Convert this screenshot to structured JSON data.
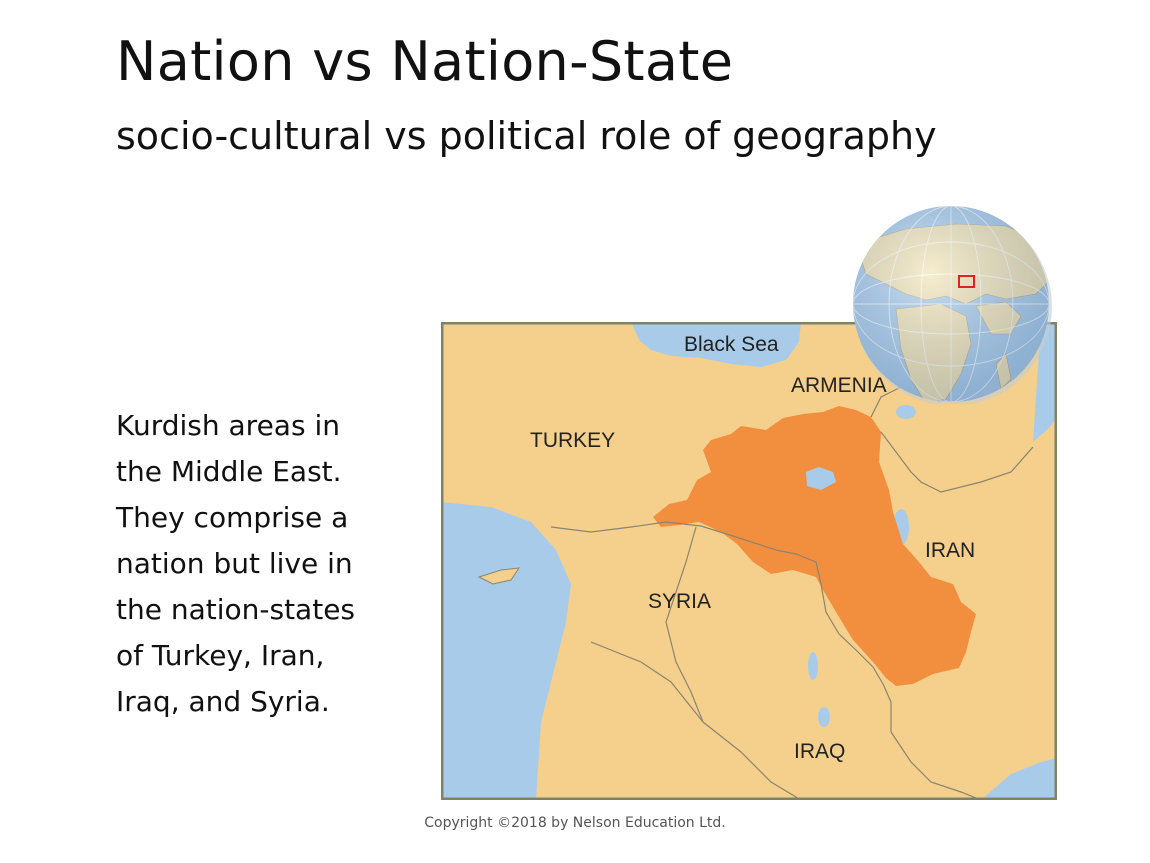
{
  "slide": {
    "title": "Nation vs Nation-State",
    "subtitle": "socio-cultural vs political role of geography",
    "body_lines": [
      "Kurdish areas in",
      "the Middle East.",
      "They comprise a",
      "nation but live in",
      "the nation-states",
      "of Turkey, Iran,",
      "Iraq, and Syria."
    ],
    "copyright": "Copyright ©2018 by Nelson Education Ltd."
  },
  "map": {
    "labels": {
      "black_sea": "Black Sea",
      "armenia": "ARMENIA",
      "turkey": "TURKEY",
      "iran": "IRAN",
      "syria": "SYRIA",
      "iraq": "IRAQ"
    },
    "colors": {
      "land": "#F5D08C",
      "water": "#A9CBEA",
      "kurdish_area": "#F28F3F",
      "border": "#8A8470",
      "frame": "#7D8466"
    }
  }
}
